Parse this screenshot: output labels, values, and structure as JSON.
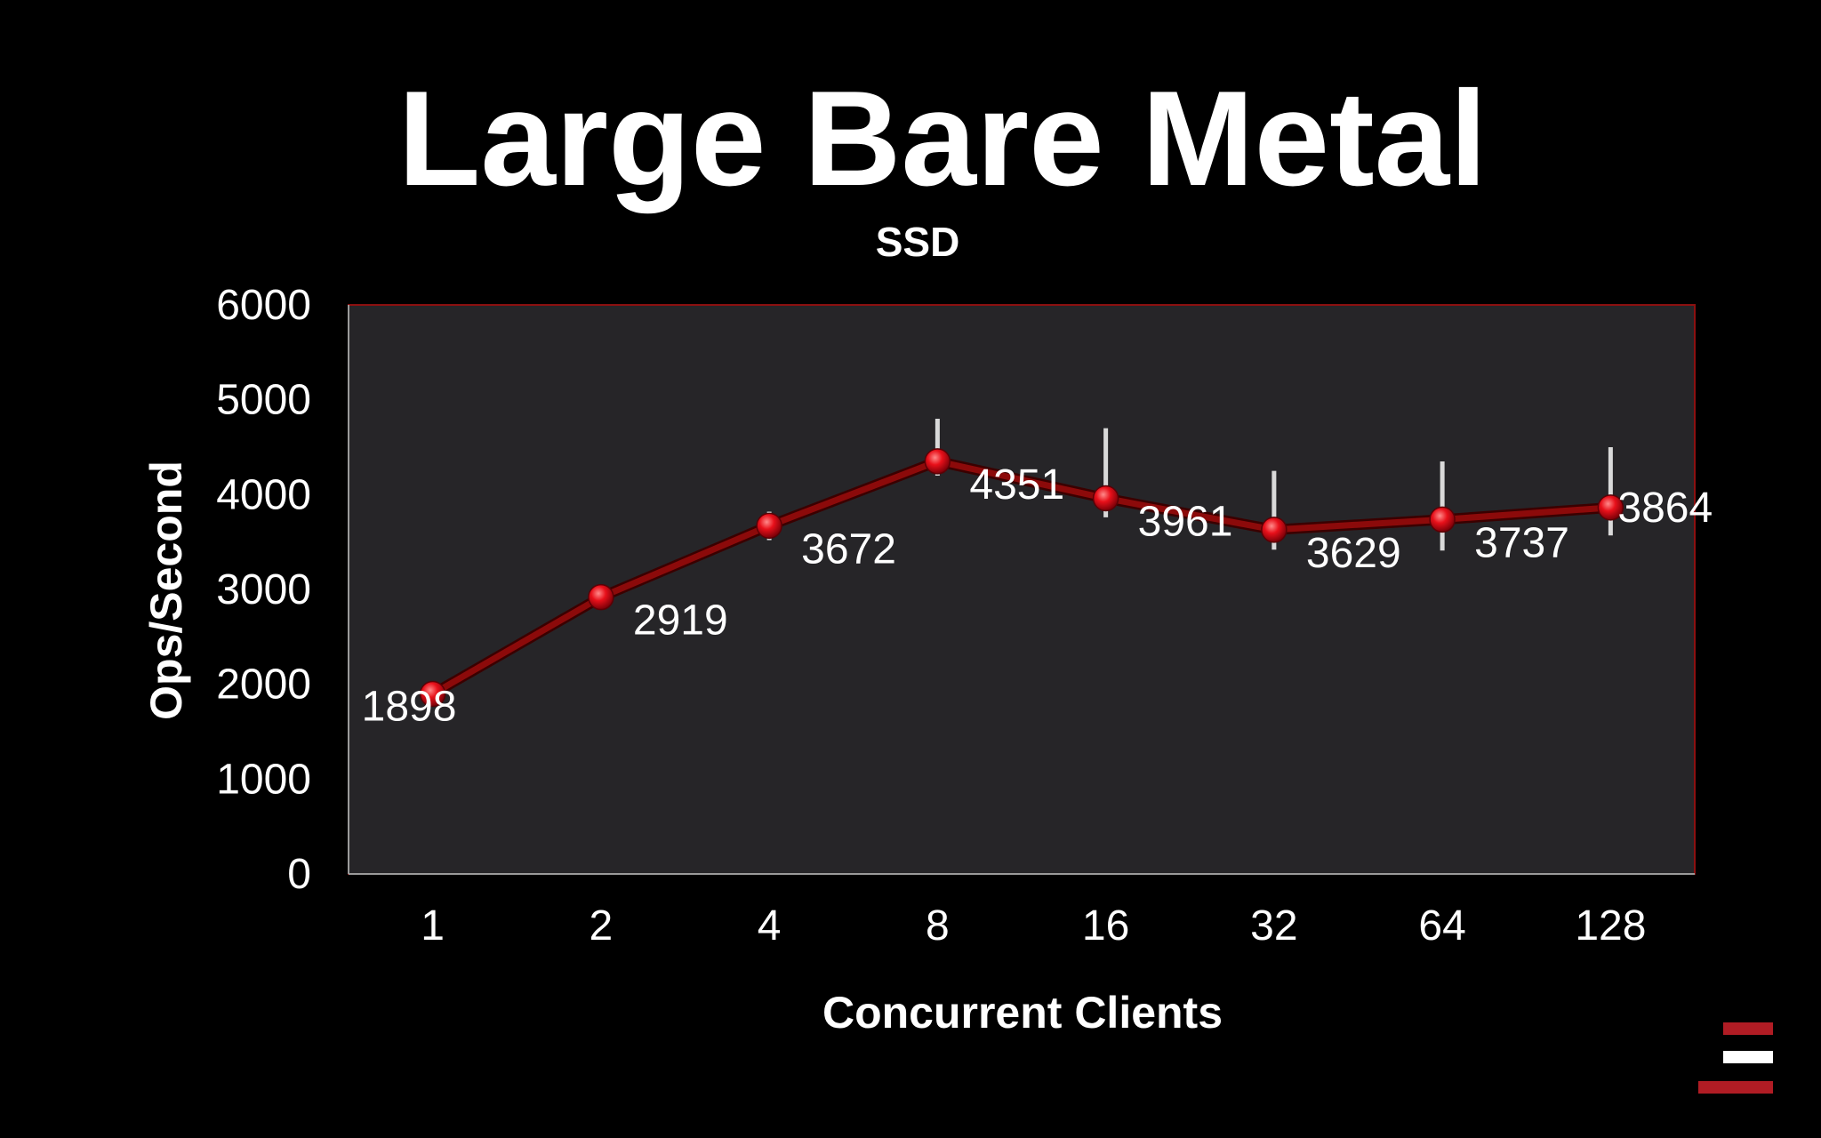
{
  "slide": {
    "title": "Large Bare Metal"
  },
  "colors": {
    "background": "#000000",
    "plot_area": "#262528",
    "plot_border": "#8b1010",
    "series_line": "#8c0a0a",
    "marker": "#e8101a",
    "error_bar": "#d9d9d9",
    "text": "#ffffff",
    "logo_red": "#b01c24",
    "logo_white": "#ffffff"
  },
  "logo": {
    "icon": "stacked-bars-logo-icon"
  },
  "chart_data": {
    "type": "line",
    "title": "SSD",
    "xlabel": "Concurrent Clients",
    "ylabel": "Ops/Second",
    "categories": [
      "1",
      "2",
      "4",
      "8",
      "16",
      "32",
      "64",
      "128"
    ],
    "series": [
      {
        "values": [
          1898,
          2919,
          3672,
          4351,
          3961,
          3629,
          3737,
          3864
        ],
        "error_low": [
          1830,
          2850,
          3520,
          4200,
          3760,
          3420,
          3410,
          3570
        ],
        "error_high": [
          1960,
          2990,
          3820,
          4800,
          4700,
          4250,
          4350,
          4500
        ]
      }
    ],
    "data_labels": [
      "1898",
      "2919",
      "3672",
      "4351",
      "3961",
      "3629",
      "3737",
      "3864"
    ],
    "ylim": [
      0,
      6000
    ],
    "y_ticks": [
      "0",
      "1000",
      "2000",
      "3000",
      "4000",
      "5000",
      "6000"
    ],
    "grid": false,
    "legend": "none"
  }
}
